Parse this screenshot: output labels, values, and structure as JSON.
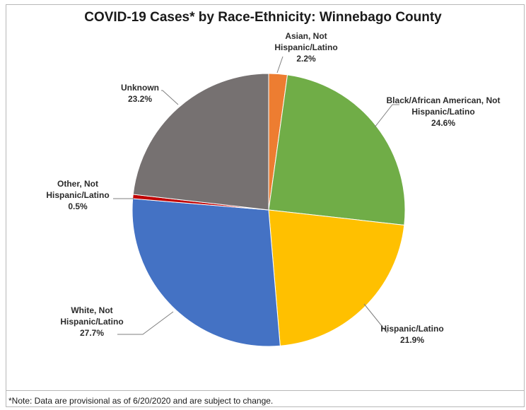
{
  "chart_data": {
    "type": "pie",
    "title": "COVID-19 Cases* by Race-Ethnicity: Winnebago County",
    "slices": [
      {
        "label_lines": [
          "Asian, Not",
          "Hispanic/Latino"
        ],
        "pct_label": "2.2%",
        "value": 2.2,
        "color": "#ed7d31"
      },
      {
        "label_lines": [
          "Black/African American, Not",
          "Hispanic/Latino"
        ],
        "pct_label": "24.6%",
        "value": 24.6,
        "color": "#70ad47"
      },
      {
        "label_lines": [
          "Hispanic/Latino"
        ],
        "pct_label": "21.9%",
        "value": 21.9,
        "color": "#ffc000"
      },
      {
        "label_lines": [
          "White, Not",
          "Hispanic/Latino"
        ],
        "pct_label": "27.7%",
        "value": 27.7,
        "color": "#4472c4"
      },
      {
        "label_lines": [
          "Other, Not",
          "Hispanic/Latino"
        ],
        "pct_label": "0.5%",
        "value": 0.5,
        "color": "#c00000"
      },
      {
        "label_lines": [
          "Unknown"
        ],
        "pct_label": "23.2%",
        "value": 23.2,
        "color": "#767171"
      }
    ],
    "note": "*Note: Data are provisional as of 6/20/2020 and are subject to change."
  }
}
